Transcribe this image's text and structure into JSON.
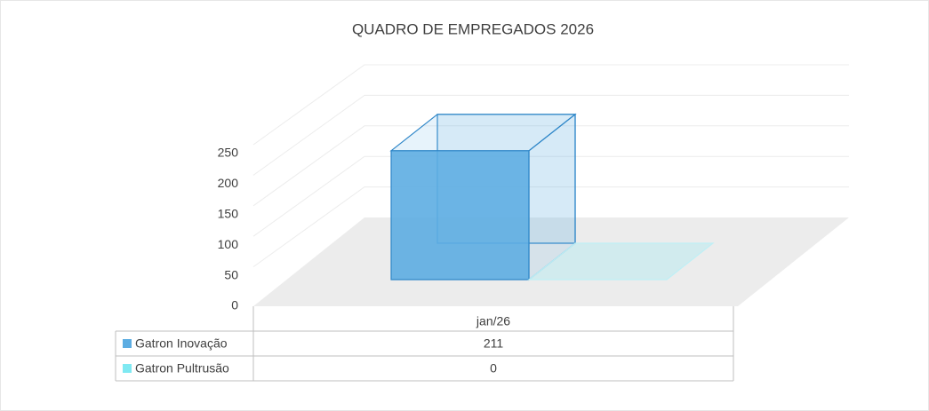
{
  "chart_data": {
    "type": "bar3d",
    "title": "QUADRO DE EMPREGADOS 2026",
    "categories": [
      "jan/26"
    ],
    "series": [
      {
        "name": "Gatron Inovação",
        "color": "#5dade2",
        "values": [
          211
        ]
      },
      {
        "name": "Gatron Pultrusão",
        "color": "#7fe9f2",
        "values": [
          0
        ]
      }
    ],
    "ylim": [
      0,
      250
    ],
    "yticks": [
      0,
      50,
      100,
      150,
      200,
      250
    ],
    "grid": true,
    "data_table": true
  }
}
